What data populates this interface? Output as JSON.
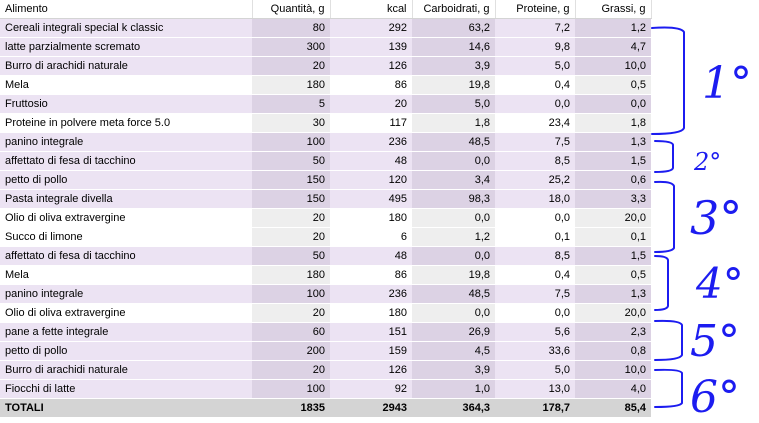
{
  "headers": [
    "Alimento",
    "Quantità, g",
    "kcal",
    "Carboidrati, g",
    "Proteine, g",
    "Grassi, g"
  ],
  "rows": [
    {
      "food": "Cereali integrali special k classic",
      "qty": "80",
      "kcal": "292",
      "carbs": "63,2",
      "protein": "7,2",
      "fat": "1,2",
      "shade": "purple"
    },
    {
      "food": "latte parzialmente scremato",
      "qty": "300",
      "kcal": "139",
      "carbs": "14,6",
      "protein": "9,8",
      "fat": "4,7",
      "shade": "purple"
    },
    {
      "food": "Burro di arachidi naturale",
      "qty": "20",
      "kcal": "126",
      "carbs": "3,9",
      "protein": "5,0",
      "fat": "10,0",
      "shade": "purple"
    },
    {
      "food": "Mela",
      "qty": "180",
      "kcal": "86",
      "carbs": "19,8",
      "protein": "0,4",
      "fat": "0,5",
      "shade": "white"
    },
    {
      "food": "Fruttosio",
      "qty": "5",
      "kcal": "20",
      "carbs": "5,0",
      "protein": "0,0",
      "fat": "0,0",
      "shade": "purple"
    },
    {
      "food": "Proteine in polvere meta force 5.0",
      "qty": "30",
      "kcal": "117",
      "carbs": "1,8",
      "protein": "23,4",
      "fat": "1,8",
      "shade": "white"
    },
    {
      "food": "panino integrale",
      "qty": "100",
      "kcal": "236",
      "carbs": "48,5",
      "protein": "7,5",
      "fat": "1,3",
      "shade": "purple"
    },
    {
      "food": "affettato di fesa di tacchino",
      "qty": "50",
      "kcal": "48",
      "carbs": "0,0",
      "protein": "8,5",
      "fat": "1,5",
      "shade": "purple"
    },
    {
      "food": "petto di pollo",
      "qty": "150",
      "kcal": "120",
      "carbs": "3,4",
      "protein": "25,2",
      "fat": "0,6",
      "shade": "purple"
    },
    {
      "food": "Pasta integrale divella",
      "qty": "150",
      "kcal": "495",
      "carbs": "98,3",
      "protein": "18,0",
      "fat": "3,3",
      "shade": "purple"
    },
    {
      "food": "Olio di oliva extravergine",
      "qty": "20",
      "kcal": "180",
      "carbs": "0,0",
      "protein": "0,0",
      "fat": "20,0",
      "shade": "white"
    },
    {
      "food": "Succo di limone",
      "qty": "20",
      "kcal": "6",
      "carbs": "1,2",
      "protein": "0,1",
      "fat": "0,1",
      "shade": "white"
    },
    {
      "food": "affettato di fesa di tacchino",
      "qty": "50",
      "kcal": "48",
      "carbs": "0,0",
      "protein": "8,5",
      "fat": "1,5",
      "shade": "purple"
    },
    {
      "food": "Mela",
      "qty": "180",
      "kcal": "86",
      "carbs": "19,8",
      "protein": "0,4",
      "fat": "0,5",
      "shade": "white"
    },
    {
      "food": "panino integrale",
      "qty": "100",
      "kcal": "236",
      "carbs": "48,5",
      "protein": "7,5",
      "fat": "1,3",
      "shade": "purple"
    },
    {
      "food": "Olio di oliva extravergine",
      "qty": "20",
      "kcal": "180",
      "carbs": "0,0",
      "protein": "0,0",
      "fat": "20,0",
      "shade": "white"
    },
    {
      "food": "pane  a fette integrale",
      "qty": "60",
      "kcal": "151",
      "carbs": "26,9",
      "protein": "5,6",
      "fat": "2,3",
      "shade": "purple"
    },
    {
      "food": "petto di pollo",
      "qty": "200",
      "kcal": "159",
      "carbs": "4,5",
      "protein": "33,6",
      "fat": "0,8",
      "shade": "purple"
    },
    {
      "food": "Burro di arachidi naturale",
      "qty": "20",
      "kcal": "126",
      "carbs": "3,9",
      "protein": "5,0",
      "fat": "10,0",
      "shade": "purple"
    },
    {
      "food": "Fiocchi di latte",
      "qty": "100",
      "kcal": "92",
      "carbs": "1,0",
      "protein": "13,0",
      "fat": "4,0",
      "shade": "purple"
    }
  ],
  "totals": {
    "label": "TOTALI",
    "qty": "1835",
    "kcal": "2943",
    "carbs": "364,3",
    "protein": "178,7",
    "fat": "85,4"
  },
  "annotations": {
    "color": "#1c1cf0",
    "meals": [
      "1°",
      "2°",
      "3°",
      "4°",
      "5°",
      "6°"
    ]
  }
}
